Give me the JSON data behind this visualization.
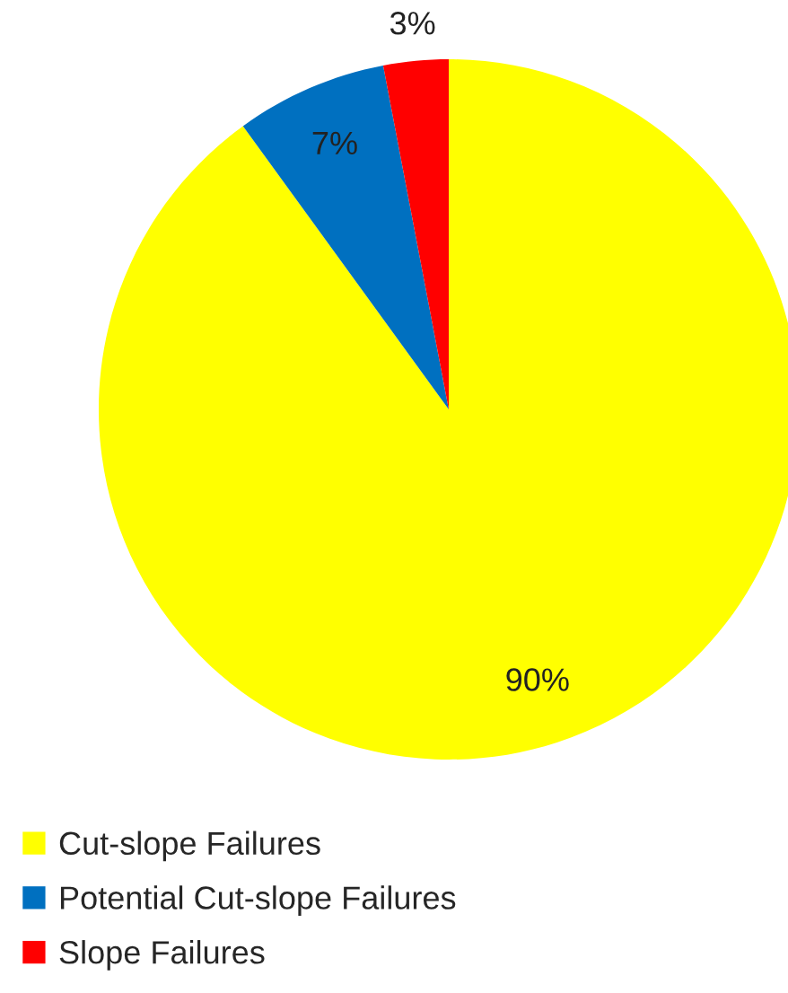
{
  "chart_data": {
    "type": "pie",
    "categories": [
      "Cut-slope Failures",
      "Potential Cut-slope Failures",
      "Slope Failures"
    ],
    "values": [
      90,
      7,
      3
    ],
    "colors": [
      "#ffff00",
      "#0070c0",
      "#ff0000"
    ],
    "value_labels": [
      "90%",
      "7%",
      "3%"
    ],
    "legend": "bottom"
  }
}
